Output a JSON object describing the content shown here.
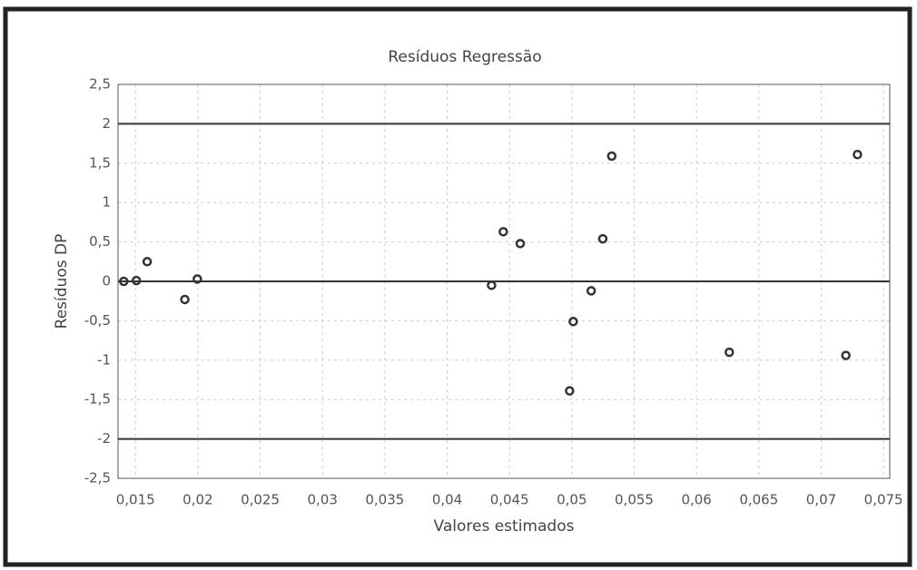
{
  "chart_data": {
    "type": "scatter",
    "title": "Resíduos Regressão",
    "xlabel": "Valores estimados",
    "ylabel": "Resíduos  DP",
    "x": [
      0.01406,
      0.01507,
      0.01594,
      0.01896,
      0.01996,
      0.04356,
      0.0445,
      0.04586,
      0.04982,
      0.05011,
      0.05155,
      0.05248,
      0.0532,
      0.06263,
      0.07198,
      0.07291
    ],
    "values": [
      0,
      0.01,
      0.25,
      -0.23,
      0.03,
      -0.05,
      0.63,
      0.48,
      -1.39,
      -0.51,
      -0.12,
      0.54,
      1.59,
      -0.9,
      -0.94,
      1.61
    ],
    "color": "#333333",
    "xlim": [
      0.0136,
      0.0755
    ],
    "xticks": [
      {
        "value": 0.015,
        "label": "0,015"
      },
      {
        "value": 0.02,
        "label": "0,02"
      },
      {
        "value": 0.025,
        "label": "0,025"
      },
      {
        "value": 0.03,
        "label": "0,03"
      },
      {
        "value": 0.035,
        "label": "0,035"
      },
      {
        "value": 0.04,
        "label": "0,04"
      },
      {
        "value": 0.045,
        "label": "0,045"
      },
      {
        "value": 0.05,
        "label": "0,05"
      },
      {
        "value": 0.055,
        "label": "0,055"
      },
      {
        "value": 0.06,
        "label": "0,06"
      },
      {
        "value": 0.065,
        "label": "0,065"
      },
      {
        "value": 0.07,
        "label": "0,07"
      },
      {
        "value": 0.075,
        "label": "0,075"
      }
    ],
    "ylim": [
      -2.5,
      2.5
    ],
    "yticks": [
      {
        "value": 2.5,
        "label": "2,5"
      },
      2,
      {
        "value": 1.5,
        "label": "1,5"
      },
      1,
      {
        "value": 0.5,
        "label": "0,5"
      },
      0,
      {
        "value": -0.5,
        "label": "-0,5"
      },
      -1,
      {
        "value": -1.5,
        "label": "-1,5"
      },
      -2,
      {
        "value": -2.5,
        "label": "-2,5"
      }
    ],
    "hlines": [
      2,
      0,
      -2
    ],
    "grid": true
  }
}
